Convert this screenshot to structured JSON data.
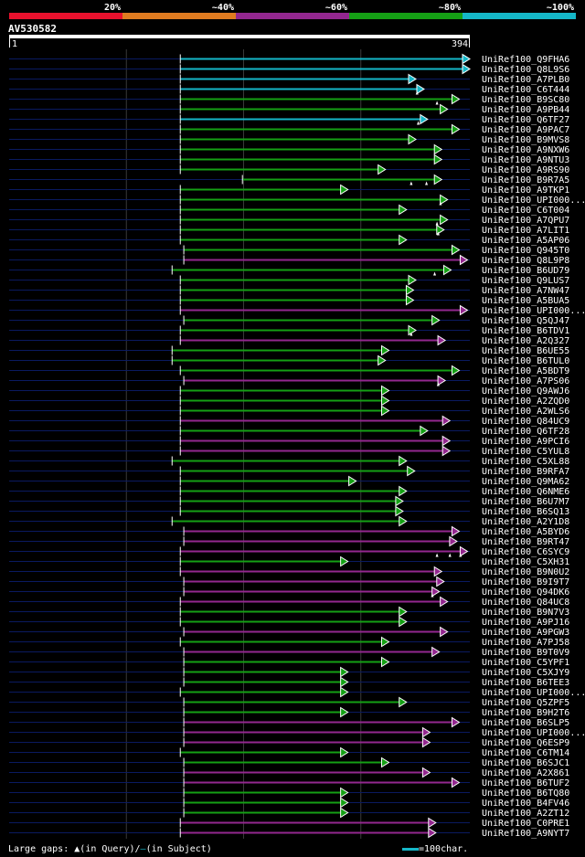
{
  "query_id": "AV530582",
  "scale": {
    "start": "1",
    "end": "394",
    "length": 394
  },
  "identity_bins": [
    {
      "label": "20%",
      "color": "#e8112d"
    },
    {
      "label": "~40%",
      "color": "#e07b20"
    },
    {
      "label": "~60%",
      "color": "#93278f"
    },
    {
      "label": "~80%",
      "color": "#15a015"
    },
    {
      "label": "~100%",
      "color": "#15b7c8"
    }
  ],
  "legend": {
    "large_gaps_prefix": "Large gaps:",
    "query_marker": "▲",
    "query_text": "(in Query)/",
    "subject_marker": "–",
    "subject_text": "(in Subject)",
    "scale_text": "=100char."
  },
  "chart_data": {
    "type": "alignment-overview",
    "query_length": 394,
    "colors": {
      "cyan": "#15b7c8",
      "green": "#15a015",
      "purple": "#93278f"
    },
    "hits": [
      {
        "name": "UniRef100_Q9FHA6",
        "start": 147,
        "end": 394,
        "color": "cyan",
        "gaps": []
      },
      {
        "name": "UniRef100_Q8L9S6",
        "start": 147,
        "end": 394,
        "color": "cyan",
        "gaps": []
      },
      {
        "name": "UniRef100_A7PLB0",
        "start": 147,
        "end": 348,
        "color": "cyan",
        "gaps": []
      },
      {
        "name": "UniRef100_C6T444",
        "start": 147,
        "end": 355,
        "color": "cyan",
        "gaps": [
          349
        ]
      },
      {
        "name": "UniRef100_B9SC80",
        "start": 147,
        "end": 385,
        "color": "green",
        "gaps": [
          366
        ]
      },
      {
        "name": "UniRef100_A9PB44",
        "start": 147,
        "end": 375,
        "color": "green",
        "gaps": []
      },
      {
        "name": "UniRef100_Q6TF27",
        "start": 147,
        "end": 358,
        "color": "cyan",
        "gaps": [
          350
        ]
      },
      {
        "name": "UniRef100_A9PAC7",
        "start": 147,
        "end": 385,
        "color": "green",
        "gaps": []
      },
      {
        "name": "UniRef100_B9MVS8",
        "start": 147,
        "end": 348,
        "color": "green",
        "gaps": []
      },
      {
        "name": "UniRef100_A9NXW6",
        "start": 147,
        "end": 370,
        "color": "green",
        "gaps": []
      },
      {
        "name": "UniRef100_A9NTU3",
        "start": 147,
        "end": 370,
        "color": "green",
        "gaps": []
      },
      {
        "name": "UniRef100_A9RS90",
        "start": 147,
        "end": 322,
        "color": "green",
        "gaps": []
      },
      {
        "name": "UniRef100_B9R7A5",
        "start": 200,
        "end": 370,
        "color": "green",
        "gaps": [
          344,
          357
        ]
      },
      {
        "name": "UniRef100_A9TKP1",
        "start": 147,
        "end": 290,
        "color": "green",
        "gaps": []
      },
      {
        "name": "UniRef100_UPI000...",
        "start": 147,
        "end": 375,
        "color": "green",
        "gaps": [
          369
        ]
      },
      {
        "name": "UniRef100_C6T004",
        "start": 147,
        "end": 340,
        "color": "green",
        "gaps": []
      },
      {
        "name": "UniRef100_A7QPU7",
        "start": 147,
        "end": 375,
        "color": "green",
        "gaps": [
          366
        ]
      },
      {
        "name": "UniRef100_A7LIT1",
        "start": 147,
        "end": 372,
        "color": "green",
        "gaps": [
          367
        ]
      },
      {
        "name": "UniRef100_A5AP06",
        "start": 147,
        "end": 340,
        "color": "green",
        "gaps": []
      },
      {
        "name": "UniRef100_Q945T0",
        "start": 150,
        "end": 385,
        "color": "green",
        "gaps": []
      },
      {
        "name": "UniRef100_Q8L9P8",
        "start": 150,
        "end": 392,
        "color": "purple",
        "gaps": []
      },
      {
        "name": "UniRef100_B6UD79",
        "start": 140,
        "end": 378,
        "color": "green",
        "gaps": [
          364
        ]
      },
      {
        "name": "UniRef100_Q9LUS7",
        "start": 147,
        "end": 348,
        "color": "green",
        "gaps": []
      },
      {
        "name": "UniRef100_A7NW47",
        "start": 147,
        "end": 346,
        "color": "green",
        "gaps": []
      },
      {
        "name": "UniRef100_A5BUA5",
        "start": 147,
        "end": 346,
        "color": "green",
        "gaps": []
      },
      {
        "name": "UniRef100_UPI000...",
        "start": 147,
        "end": 392,
        "color": "purple",
        "gaps": []
      },
      {
        "name": "UniRef100_Q5QJ47",
        "start": 150,
        "end": 368,
        "color": "green",
        "gaps": []
      },
      {
        "name": "UniRef100_B6TDV1",
        "start": 147,
        "end": 348,
        "color": "green",
        "gaps": [
          344
        ]
      },
      {
        "name": "UniRef100_A2Q327",
        "start": 147,
        "end": 373,
        "color": "purple",
        "gaps": []
      },
      {
        "name": "UniRef100_B6UE55",
        "start": 140,
        "end": 325,
        "color": "green",
        "gaps": []
      },
      {
        "name": "UniRef100_B6TUL0",
        "start": 140,
        "end": 322,
        "color": "green",
        "gaps": []
      },
      {
        "name": "UniRef100_A5BDT9",
        "start": 147,
        "end": 385,
        "color": "green",
        "gaps": []
      },
      {
        "name": "UniRef100_A7PS06",
        "start": 150,
        "end": 373,
        "color": "purple",
        "gaps": [
          367
        ]
      },
      {
        "name": "UniRef100_Q9AWJ6",
        "start": 147,
        "end": 325,
        "color": "green",
        "gaps": []
      },
      {
        "name": "UniRef100_A2ZQD0",
        "start": 147,
        "end": 325,
        "color": "green",
        "gaps": []
      },
      {
        "name": "UniRef100_A2WLS6",
        "start": 147,
        "end": 325,
        "color": "green",
        "gaps": []
      },
      {
        "name": "UniRef100_Q84UC9",
        "start": 147,
        "end": 377,
        "color": "purple",
        "gaps": []
      },
      {
        "name": "UniRef100_Q6TF28",
        "start": 147,
        "end": 358,
        "color": "green",
        "gaps": []
      },
      {
        "name": "UniRef100_A9PCI6",
        "start": 147,
        "end": 377,
        "color": "purple",
        "gaps": []
      },
      {
        "name": "UniRef100_C5YUL8",
        "start": 147,
        "end": 377,
        "color": "purple",
        "gaps": []
      },
      {
        "name": "UniRef100_C5XL88",
        "start": 140,
        "end": 340,
        "color": "green",
        "gaps": []
      },
      {
        "name": "UniRef100_B9RFA7",
        "start": 147,
        "end": 347,
        "color": "green",
        "gaps": []
      },
      {
        "name": "UniRef100_Q9MA62",
        "start": 147,
        "end": 297,
        "color": "green",
        "gaps": []
      },
      {
        "name": "UniRef100_Q6NME6",
        "start": 147,
        "end": 340,
        "color": "green",
        "gaps": []
      },
      {
        "name": "UniRef100_B6U7M7",
        "start": 147,
        "end": 337,
        "color": "green",
        "gaps": []
      },
      {
        "name": "UniRef100_B6SQ13",
        "start": 147,
        "end": 337,
        "color": "green",
        "gaps": []
      },
      {
        "name": "UniRef100_A2Y1D8",
        "start": 140,
        "end": 340,
        "color": "green",
        "gaps": []
      },
      {
        "name": "UniRef100_A5BYD6",
        "start": 150,
        "end": 385,
        "color": "purple",
        "gaps": []
      },
      {
        "name": "UniRef100_B9RT47",
        "start": 150,
        "end": 383,
        "color": "purple",
        "gaps": []
      },
      {
        "name": "UniRef100_C6SYC9",
        "start": 147,
        "end": 392,
        "color": "purple",
        "gaps": [
          366,
          377,
          386
        ]
      },
      {
        "name": "UniRef100_C5XH31",
        "start": 147,
        "end": 290,
        "color": "green",
        "gaps": []
      },
      {
        "name": "UniRef100_B9N0U2",
        "start": 147,
        "end": 370,
        "color": "purple",
        "gaps": []
      },
      {
        "name": "UniRef100_B9I9T7",
        "start": 150,
        "end": 372,
        "color": "purple",
        "gaps": []
      },
      {
        "name": "UniRef100_Q94DK6",
        "start": 150,
        "end": 368,
        "color": "purple",
        "gaps": [
          362
        ]
      },
      {
        "name": "UniRef100_Q84UC8",
        "start": 147,
        "end": 375,
        "color": "purple",
        "gaps": []
      },
      {
        "name": "UniRef100_B9N7V3",
        "start": 147,
        "end": 340,
        "color": "green",
        "gaps": []
      },
      {
        "name": "UniRef100_A9PJ16",
        "start": 147,
        "end": 340,
        "color": "green",
        "gaps": []
      },
      {
        "name": "UniRef100_A9PGW3",
        "start": 150,
        "end": 375,
        "color": "purple",
        "gaps": []
      },
      {
        "name": "UniRef100_A7PJ58",
        "start": 147,
        "end": 325,
        "color": "green",
        "gaps": []
      },
      {
        "name": "UniRef100_B9T0V9",
        "start": 150,
        "end": 368,
        "color": "purple",
        "gaps": []
      },
      {
        "name": "UniRef100_C5YPF1",
        "start": 150,
        "end": 325,
        "color": "green",
        "gaps": []
      },
      {
        "name": "UniRef100_C5XJY9",
        "start": 150,
        "end": 290,
        "color": "green",
        "gaps": []
      },
      {
        "name": "UniRef100_B6TEE3",
        "start": 150,
        "end": 290,
        "color": "green",
        "gaps": []
      },
      {
        "name": "UniRef100_UPI000...",
        "start": 147,
        "end": 290,
        "color": "green",
        "gaps": []
      },
      {
        "name": "UniRef100_Q5ZPF5",
        "start": 150,
        "end": 340,
        "color": "green",
        "gaps": []
      },
      {
        "name": "UniRef100_B9H2T6",
        "start": 150,
        "end": 290,
        "color": "green",
        "gaps": []
      },
      {
        "name": "UniRef100_B6SLP5",
        "start": 150,
        "end": 385,
        "color": "purple",
        "gaps": []
      },
      {
        "name": "UniRef100_UPI000...",
        "start": 150,
        "end": 360,
        "color": "purple",
        "gaps": []
      },
      {
        "name": "UniRef100_Q6ESP9",
        "start": 150,
        "end": 360,
        "color": "purple",
        "gaps": []
      },
      {
        "name": "UniRef100_C6TM14",
        "start": 147,
        "end": 290,
        "color": "green",
        "gaps": []
      },
      {
        "name": "UniRef100_B6SJC1",
        "start": 150,
        "end": 325,
        "color": "green",
        "gaps": []
      },
      {
        "name": "UniRef100_A2X861",
        "start": 150,
        "end": 360,
        "color": "purple",
        "gaps": []
      },
      {
        "name": "UniRef100_B6TUF2",
        "start": 150,
        "end": 385,
        "color": "purple",
        "gaps": []
      },
      {
        "name": "UniRef100_B6TQ80",
        "start": 150,
        "end": 290,
        "color": "green",
        "gaps": []
      },
      {
        "name": "UniRef100_B4FV46",
        "start": 150,
        "end": 290,
        "color": "green",
        "gaps": []
      },
      {
        "name": "UniRef100_A2ZT12",
        "start": 150,
        "end": 290,
        "color": "green",
        "gaps": []
      },
      {
        "name": "UniRef100_C0PRE1",
        "start": 147,
        "end": 365,
        "color": "purple",
        "gaps": []
      },
      {
        "name": "UniRef100_A9NYT7",
        "start": 147,
        "end": 365,
        "color": "purple",
        "gaps": []
      }
    ]
  }
}
